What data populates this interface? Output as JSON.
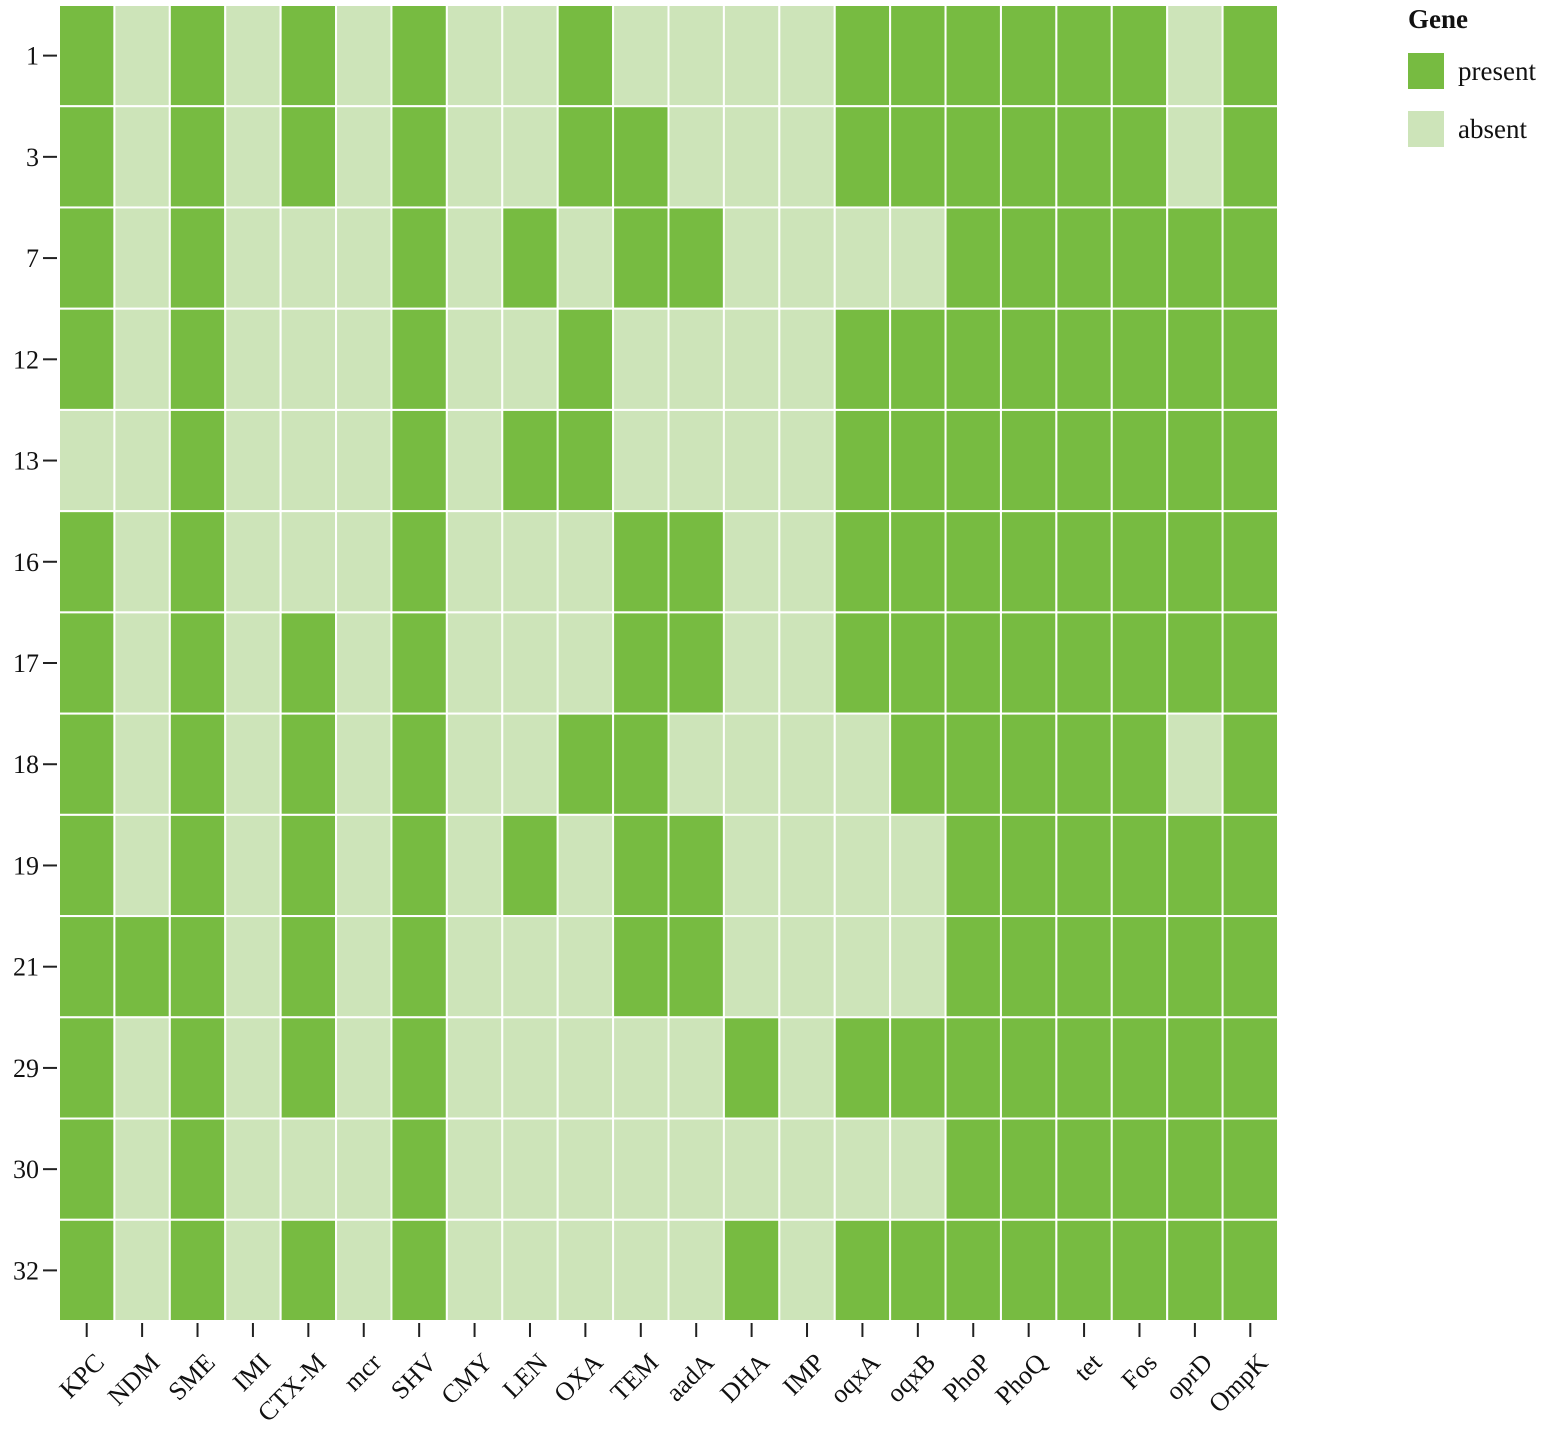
{
  "chart_data": {
    "type": "heatmap",
    "legend": {
      "title": "Gene",
      "placement": "top-right",
      "entries": [
        {
          "label": "present",
          "value": 1,
          "color": "#77bb41"
        },
        {
          "label": "absent",
          "value": 0,
          "color": "#cde4b9"
        }
      ]
    },
    "rows": [
      "1",
      "3",
      "7",
      "12",
      "13",
      "16",
      "17",
      "18",
      "19",
      "21",
      "29",
      "30",
      "32"
    ],
    "columns": [
      "KPC",
      "NDM",
      "SME",
      "IMI",
      "CTX-M",
      "mcr",
      "SHV",
      "CMY",
      "LEN",
      "OXA",
      "TEM",
      "aadA",
      "DHA",
      "IMP",
      "oqxA",
      "oqxB",
      "PhoP",
      "PhoQ",
      "tet",
      "Fos",
      "oprD",
      "OmpK"
    ],
    "values": [
      [
        1,
        0,
        1,
        0,
        1,
        0,
        1,
        0,
        0,
        1,
        0,
        0,
        0,
        0,
        1,
        1,
        1,
        1,
        1,
        1,
        0,
        1
      ],
      [
        1,
        0,
        1,
        0,
        1,
        0,
        1,
        0,
        0,
        1,
        1,
        0,
        0,
        0,
        1,
        1,
        1,
        1,
        1,
        1,
        0,
        1
      ],
      [
        1,
        0,
        1,
        0,
        0,
        0,
        1,
        0,
        1,
        0,
        1,
        1,
        0,
        0,
        0,
        0,
        1,
        1,
        1,
        1,
        1,
        1
      ],
      [
        1,
        0,
        1,
        0,
        0,
        0,
        1,
        0,
        0,
        1,
        0,
        0,
        0,
        0,
        1,
        1,
        1,
        1,
        1,
        1,
        1,
        1
      ],
      [
        0,
        0,
        1,
        0,
        0,
        0,
        1,
        0,
        1,
        1,
        0,
        0,
        0,
        0,
        1,
        1,
        1,
        1,
        1,
        1,
        1,
        1
      ],
      [
        1,
        0,
        1,
        0,
        0,
        0,
        1,
        0,
        0,
        0,
        1,
        1,
        0,
        0,
        1,
        1,
        1,
        1,
        1,
        1,
        1,
        1
      ],
      [
        1,
        0,
        1,
        0,
        1,
        0,
        1,
        0,
        0,
        0,
        1,
        1,
        0,
        0,
        1,
        1,
        1,
        1,
        1,
        1,
        1,
        1
      ],
      [
        1,
        0,
        1,
        0,
        1,
        0,
        1,
        0,
        0,
        1,
        1,
        0,
        0,
        0,
        0,
        1,
        1,
        1,
        1,
        1,
        0,
        1
      ],
      [
        1,
        0,
        1,
        0,
        1,
        0,
        1,
        0,
        1,
        0,
        1,
        1,
        0,
        0,
        0,
        0,
        1,
        1,
        1,
        1,
        1,
        1
      ],
      [
        1,
        1,
        1,
        0,
        1,
        0,
        1,
        0,
        0,
        0,
        1,
        1,
        0,
        0,
        0,
        0,
        1,
        1,
        1,
        1,
        1,
        1
      ],
      [
        1,
        0,
        1,
        0,
        1,
        0,
        1,
        0,
        0,
        0,
        0,
        0,
        1,
        0,
        1,
        1,
        1,
        1,
        1,
        1,
        1,
        1
      ],
      [
        1,
        0,
        1,
        0,
        0,
        0,
        1,
        0,
        0,
        0,
        0,
        0,
        0,
        0,
        0,
        0,
        1,
        1,
        1,
        1,
        1,
        1
      ],
      [
        1,
        0,
        1,
        0,
        1,
        0,
        1,
        0,
        0,
        0,
        0,
        0,
        1,
        0,
        1,
        1,
        1,
        1,
        1,
        1,
        1,
        1
      ]
    ],
    "grid": false
  }
}
